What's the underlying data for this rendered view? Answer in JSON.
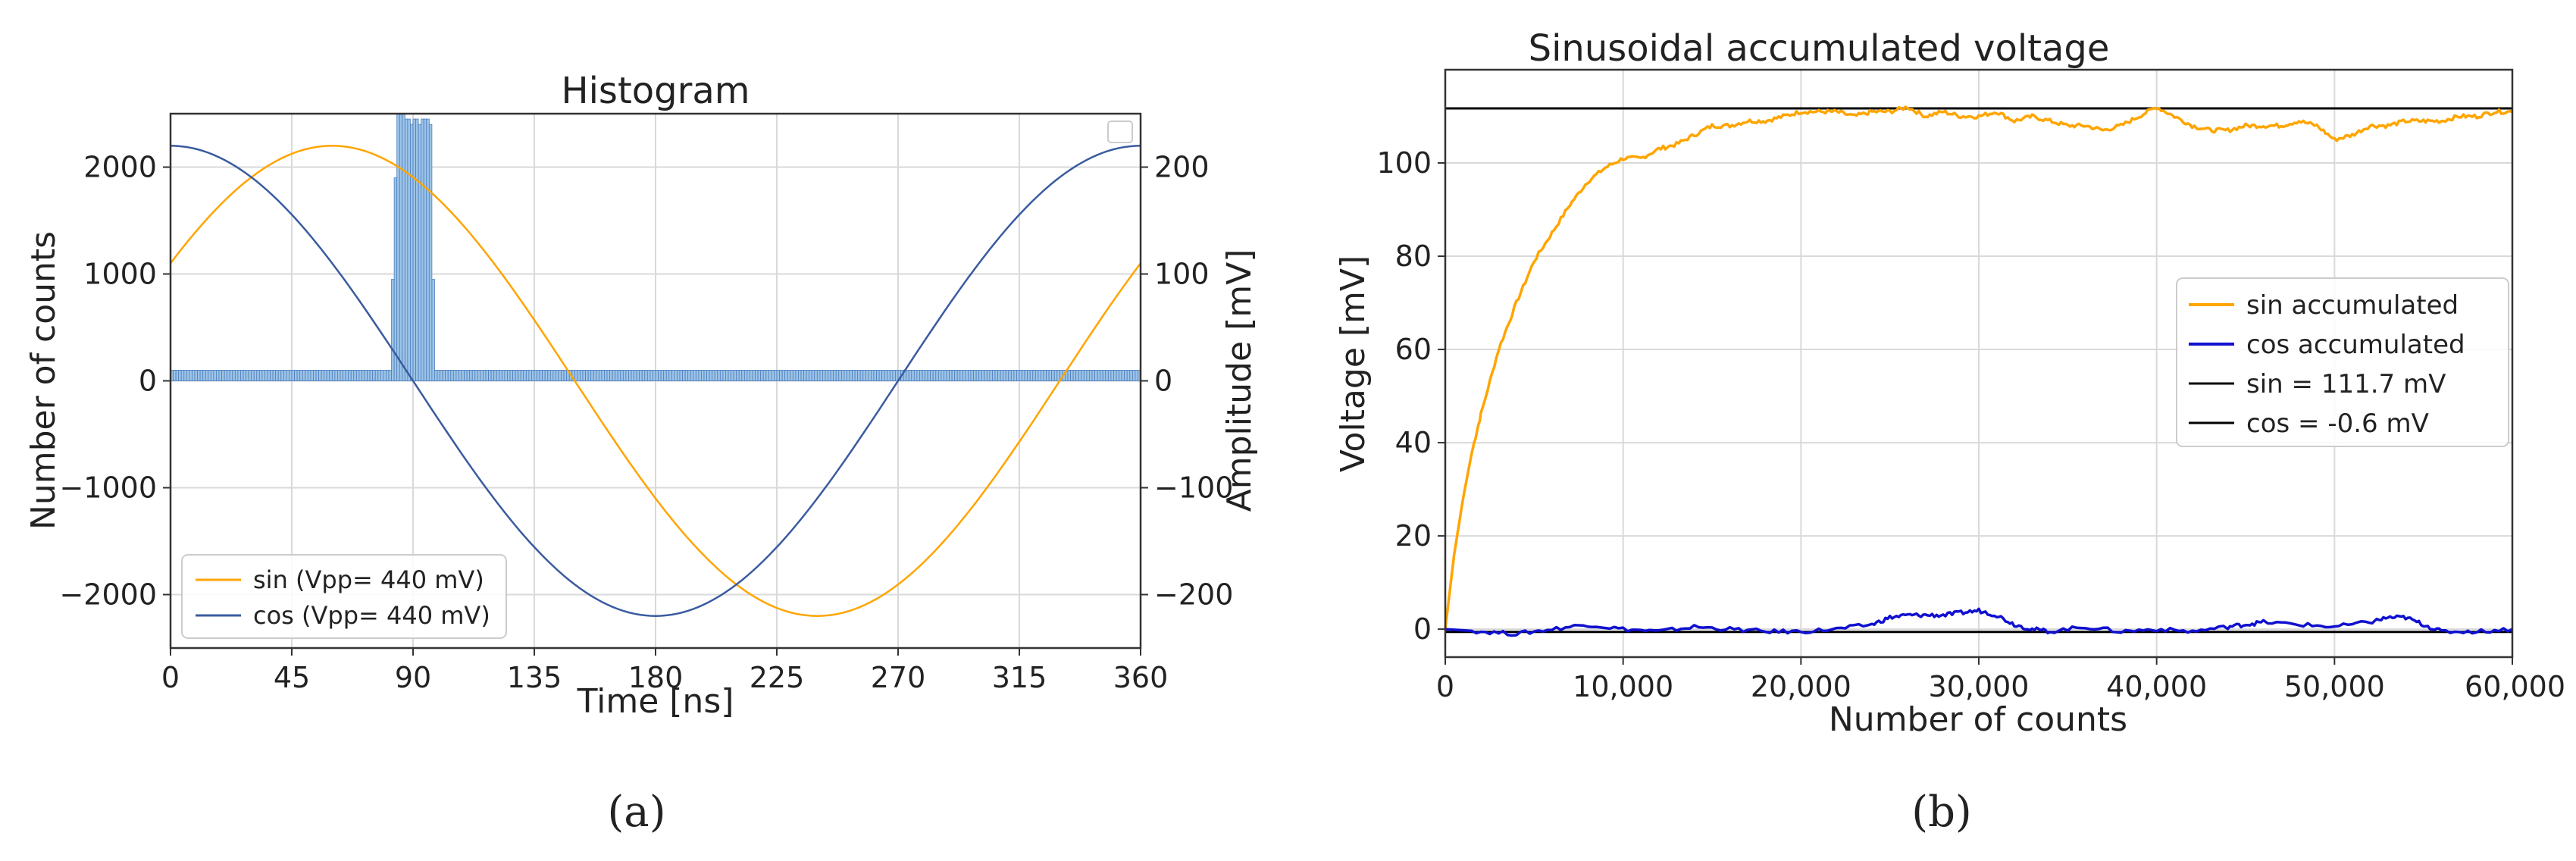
{
  "colors": {
    "sin": "#FFA500",
    "cos_a": "#3A5BA0",
    "cos_b": "#1010D0",
    "bars": "#9DC3E6",
    "bar_edge": "#4A7FBF",
    "ref": "#000000"
  },
  "panels": {
    "a_label": "(a)",
    "b_label": "(b)"
  },
  "chart_data": [
    {
      "id": "a",
      "type": "bar",
      "title": "Histogram",
      "xlabel": "Time [ns]",
      "ylabel": "Number of counts",
      "y2label": "Amplitude [mV]",
      "xlim": [
        0,
        360
      ],
      "ylim": [
        -2500,
        2500
      ],
      "y2lim": [
        -250,
        250
      ],
      "xticks": [
        0,
        45,
        90,
        135,
        180,
        225,
        270,
        315,
        360
      ],
      "yticks": [
        -2000,
        -1000,
        0,
        1000,
        2000
      ],
      "y2ticks": [
        -200,
        -100,
        0,
        100,
        200
      ],
      "xtick_labels": [
        "0",
        "45",
        "90",
        "135",
        "180",
        "225",
        "270",
        "315",
        "360"
      ],
      "ytick_labels": [
        "−2000",
        "−1000",
        "0",
        "1000",
        "2000"
      ],
      "y2tick_labels": [
        "−200",
        "−100",
        "0",
        "100",
        "200"
      ],
      "grid": true,
      "legend_position": "bottom-left",
      "histogram": {
        "bin_width": 1,
        "baseline_counts": 100,
        "peak_range_ns": [
          82,
          97
        ],
        "peak_counts": [
          950,
          1900,
          2500,
          2500,
          2500,
          2450,
          2450,
          2400,
          2450,
          2450,
          2400,
          2450,
          2450,
          2450,
          2400,
          950
        ]
      },
      "series": [
        {
          "name": "sin (Vpp= 440 mV)",
          "type": "line",
          "function": "sin",
          "amplitude_mV": 220,
          "period_ns": 360,
          "phase_deg": 30,
          "axis": "right"
        },
        {
          "name": "cos (Vpp= 440 mV)",
          "type": "line",
          "function": "cos",
          "amplitude_mV": 220,
          "period_ns": 360,
          "phase_deg": 0,
          "axis": "right"
        }
      ]
    },
    {
      "id": "b",
      "type": "line",
      "title": "Sinusoidal accumulated voltage",
      "xlabel": "Number of counts",
      "ylabel": "Voltage [mV]",
      "xlim": [
        0,
        60000
      ],
      "ylim": [
        -6,
        120
      ],
      "xticks": [
        0,
        10000,
        20000,
        30000,
        40000,
        50000,
        60000
      ],
      "yticks": [
        0,
        20,
        40,
        60,
        80,
        100
      ],
      "xtick_labels": [
        "0",
        "10,000",
        "20,000",
        "30,000",
        "40,000",
        "50,000",
        "60,000"
      ],
      "ytick_labels": [
        "0",
        "20",
        "40",
        "60",
        "80",
        "100"
      ],
      "grid": true,
      "legend_position": "center-right",
      "series": [
        {
          "name": "sin accumulated",
          "x": [
            0,
            500,
            1000,
            1500,
            2000,
            3000,
            4000,
            5000,
            6000,
            7000,
            8000,
            9000,
            10000,
            11000,
            12000,
            13000,
            14000,
            15000,
            16000,
            17000,
            18000,
            19000,
            20000,
            21000,
            22000,
            23000,
            24000,
            25000,
            26000,
            27000,
            28000,
            29000,
            30000,
            31000,
            32000,
            33000,
            34000,
            35000,
            36000,
            37000,
            38000,
            39000,
            40000,
            41000,
            42000,
            43000,
            44000,
            45000,
            46000,
            47000,
            48000,
            49000,
            50000,
            51000,
            52000,
            53000,
            54000,
            55000,
            56000,
            57000,
            58000,
            59000,
            60000
          ],
          "y": [
            0,
            16,
            28,
            38,
            46,
            60,
            70,
            79,
            85,
            91,
            96,
            99,
            101,
            101,
            103,
            104,
            106,
            108,
            108,
            109,
            109,
            110,
            111,
            111,
            111,
            110,
            111,
            111,
            112,
            110,
            111,
            110,
            110,
            111,
            109,
            110,
            109,
            108,
            108,
            107,
            108,
            110,
            112,
            110,
            108,
            107,
            107,
            108,
            108,
            108,
            109,
            108,
            105,
            106,
            108,
            108,
            109,
            109,
            109,
            110,
            110,
            111,
            111
          ]
        },
        {
          "name": "cos accumulated",
          "x": [
            0,
            2000,
            4000,
            6000,
            8000,
            10000,
            12000,
            14000,
            16000,
            18000,
            20000,
            22000,
            24000,
            25000,
            26000,
            27000,
            28000,
            29000,
            30000,
            31000,
            32000,
            33000,
            34000,
            36000,
            38000,
            40000,
            42000,
            44000,
            45000,
            46000,
            48000,
            50000,
            52000,
            53000,
            54000,
            55000,
            56000,
            58000,
            60000
          ],
          "y": [
            0,
            -0.5,
            -1,
            0,
            1,
            0,
            -0.5,
            0.5,
            0,
            -0.5,
            -0.5,
            0,
            1,
            2.5,
            3,
            3,
            3,
            3.5,
            4,
            3,
            1,
            0,
            -0.5,
            0.5,
            -0.5,
            0,
            -0.5,
            0.5,
            1,
            1.5,
            1,
            0.5,
            1.5,
            2.5,
            2.5,
            1,
            -0.5,
            -0.5,
            0
          ]
        },
        {
          "name": "sin = 111.7 mV",
          "type": "hline",
          "y": 111.7
        },
        {
          "name": "cos = -0.6 mV",
          "type": "hline",
          "y": -0.6
        }
      ]
    }
  ]
}
